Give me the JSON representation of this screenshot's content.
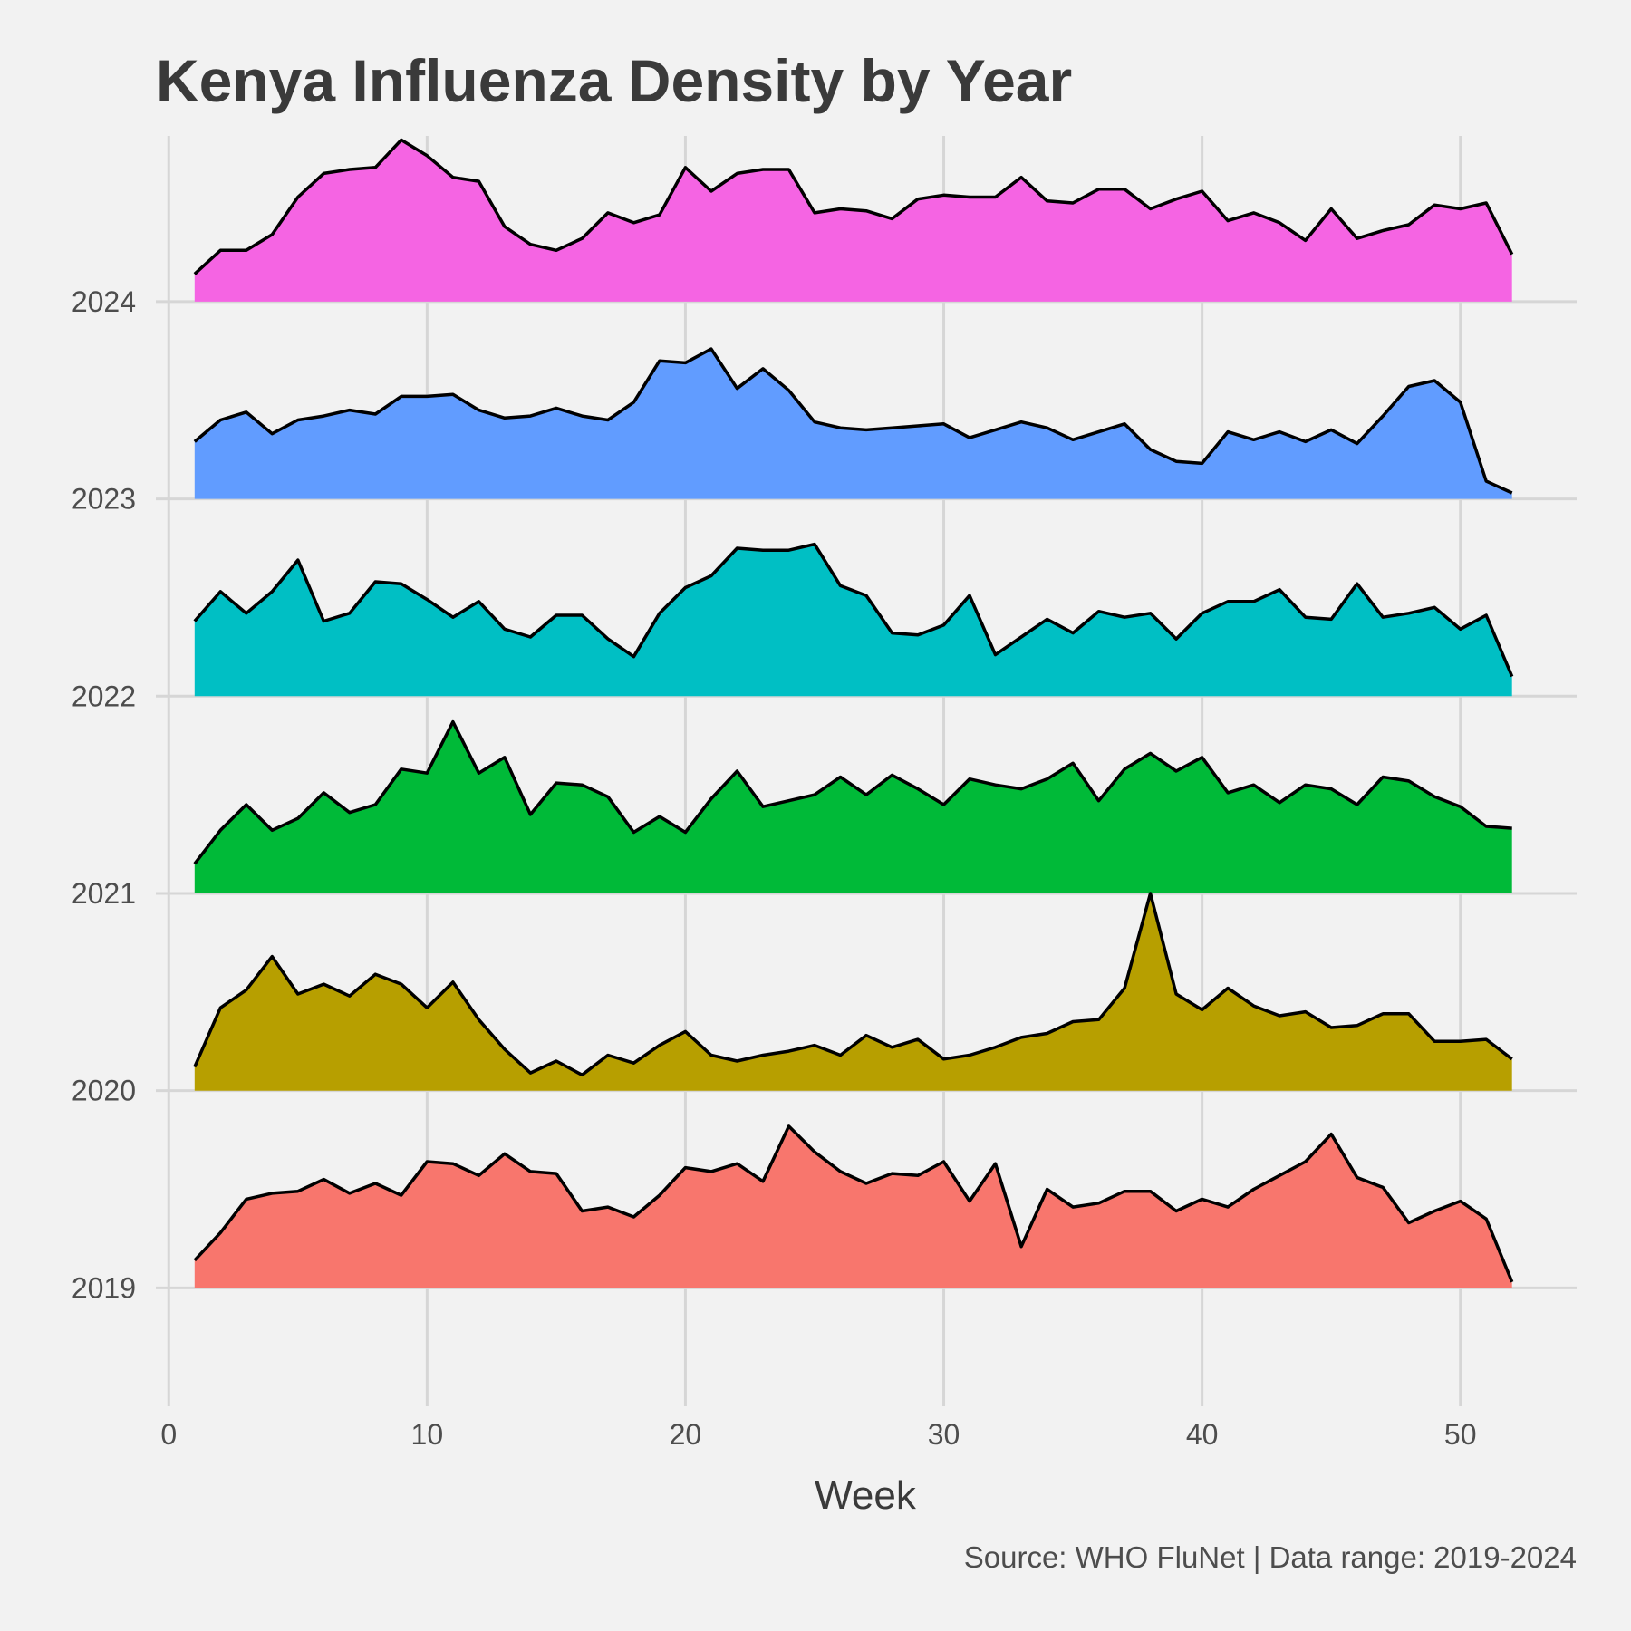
{
  "chart_data": {
    "type": "area",
    "title": "Kenya Influenza Density by Year",
    "xlabel": "Week",
    "ylabel": "",
    "caption": "Source: WHO FluNet | Data range: 2019-2024",
    "xlim": [
      -0.5,
      54.5
    ],
    "ylim": [
      2018.4,
      2024.84
    ],
    "xticks": [
      0,
      10,
      20,
      30,
      40,
      50
    ],
    "yticks": [
      2019,
      2020,
      2021,
      2022,
      2023,
      2024
    ],
    "grid": true,
    "legend": "none",
    "x": [
      1,
      2,
      3,
      4,
      5,
      6,
      7,
      8,
      9,
      10,
      11,
      12,
      13,
      14,
      15,
      16,
      17,
      18,
      19,
      20,
      21,
      22,
      23,
      24,
      25,
      26,
      27,
      28,
      29,
      30,
      31,
      32,
      33,
      34,
      35,
      36,
      37,
      38,
      39,
      40,
      41,
      42,
      43,
      44,
      45,
      46,
      47,
      48,
      49,
      50,
      51,
      52
    ],
    "series": [
      {
        "baseline": 2019,
        "color": "#F8766D",
        "values": [
          2019.14,
          2019.28,
          2019.45,
          2019.48,
          2019.49,
          2019.55,
          2019.48,
          2019.53,
          2019.47,
          2019.64,
          2019.63,
          2019.57,
          2019.68,
          2019.59,
          2019.58,
          2019.39,
          2019.41,
          2019.36,
          2019.47,
          2019.61,
          2019.59,
          2019.63,
          2019.54,
          2019.82,
          2019.69,
          2019.59,
          2019.53,
          2019.58,
          2019.57,
          2019.64,
          2019.44,
          2019.63,
          2019.21,
          2019.5,
          2019.41,
          2019.43,
          2019.49,
          2019.49,
          2019.39,
          2019.45,
          2019.41,
          2019.5,
          2019.57,
          2019.64,
          2019.78,
          2019.56,
          2019.51,
          2019.33,
          2019.39,
          2019.44,
          2019.35,
          2019.03
        ]
      },
      {
        "baseline": 2020,
        "color": "#B79F00",
        "values": [
          2020.12,
          2020.42,
          2020.51,
          2020.68,
          2020.49,
          2020.54,
          2020.48,
          2020.59,
          2020.54,
          2020.42,
          2020.55,
          2020.36,
          2020.21,
          2020.09,
          2020.15,
          2020.08,
          2020.18,
          2020.14,
          2020.23,
          2020.3,
          2020.18,
          2020.15,
          2020.18,
          2020.2,
          2020.23,
          2020.18,
          2020.28,
          2020.22,
          2020.26,
          2020.16,
          2020.18,
          2020.22,
          2020.27,
          2020.29,
          2020.35,
          2020.36,
          2020.52,
          2021.0,
          2020.49,
          2020.41,
          2020.52,
          2020.43,
          2020.38,
          2020.4,
          2020.32,
          2020.33,
          2020.39,
          2020.39,
          2020.25,
          2020.25,
          2020.26,
          2020.16
        ]
      },
      {
        "baseline": 2021,
        "color": "#00BA38",
        "values": [
          2021.15,
          2021.32,
          2021.45,
          2021.32,
          2021.38,
          2021.51,
          2021.41,
          2021.45,
          2021.63,
          2021.61,
          2021.87,
          2021.61,
          2021.69,
          2021.4,
          2021.56,
          2021.55,
          2021.49,
          2021.31,
          2021.39,
          2021.31,
          2021.48,
          2021.62,
          2021.44,
          2021.47,
          2021.5,
          2021.59,
          2021.5,
          2021.6,
          2021.53,
          2021.45,
          2021.58,
          2021.55,
          2021.53,
          2021.58,
          2021.66,
          2021.47,
          2021.63,
          2021.71,
          2021.62,
          2021.69,
          2021.51,
          2021.55,
          2021.46,
          2021.55,
          2021.53,
          2021.45,
          2021.59,
          2021.57,
          2021.49,
          2021.44,
          2021.34,
          2021.33
        ]
      },
      {
        "baseline": 2022,
        "color": "#00BFC4",
        "values": [
          2022.38,
          2022.53,
          2022.42,
          2022.53,
          2022.69,
          2022.38,
          2022.42,
          2022.58,
          2022.57,
          2022.49,
          2022.4,
          2022.48,
          2022.34,
          2022.3,
          2022.41,
          2022.41,
          2022.29,
          2022.2,
          2022.42,
          2022.55,
          2022.61,
          2022.75,
          2022.74,
          2022.74,
          2022.77,
          2022.56,
          2022.51,
          2022.32,
          2022.31,
          2022.36,
          2022.51,
          2022.21,
          2022.3,
          2022.39,
          2022.32,
          2022.43,
          2022.4,
          2022.42,
          2022.29,
          2022.42,
          2022.48,
          2022.48,
          2022.54,
          2022.4,
          2022.39,
          2022.57,
          2022.4,
          2022.42,
          2022.45,
          2022.34,
          2022.41,
          2022.1
        ]
      },
      {
        "baseline": 2023,
        "color": "#619CFF",
        "values": [
          2023.29,
          2023.4,
          2023.44,
          2023.33,
          2023.4,
          2023.42,
          2023.45,
          2023.43,
          2023.52,
          2023.52,
          2023.53,
          2023.45,
          2023.41,
          2023.42,
          2023.46,
          2023.42,
          2023.4,
          2023.49,
          2023.7,
          2023.69,
          2023.76,
          2023.56,
          2023.66,
          2023.55,
          2023.39,
          2023.36,
          2023.35,
          2023.36,
          2023.37,
          2023.38,
          2023.31,
          2023.35,
          2023.39,
          2023.36,
          2023.3,
          2023.34,
          2023.38,
          2023.25,
          2023.19,
          2023.18,
          2023.34,
          2023.3,
          2023.34,
          2023.29,
          2023.35,
          2023.28,
          2023.42,
          2023.57,
          2023.6,
          2023.49,
          2023.09,
          2023.03
        ]
      },
      {
        "baseline": 2024,
        "color": "#F564E3",
        "values": [
          2024.14,
          2024.26,
          2024.26,
          2024.34,
          2024.53,
          2024.65,
          2024.67,
          2024.68,
          2024.82,
          2024.74,
          2024.63,
          2024.61,
          2024.38,
          2024.29,
          2024.26,
          2024.32,
          2024.45,
          2024.4,
          2024.44,
          2024.68,
          2024.56,
          2024.65,
          2024.67,
          2024.67,
          2024.45,
          2024.47,
          2024.46,
          2024.42,
          2024.52,
          2024.54,
          2024.53,
          2024.53,
          2024.63,
          2024.51,
          2024.5,
          2024.57,
          2024.57,
          2024.47,
          2024.52,
          2024.56,
          2024.41,
          2024.45,
          2024.4,
          2024.31,
          2024.47,
          2024.32,
          2024.36,
          2024.39,
          2024.49,
          2024.47,
          2024.5,
          2024.24
        ]
      }
    ]
  }
}
